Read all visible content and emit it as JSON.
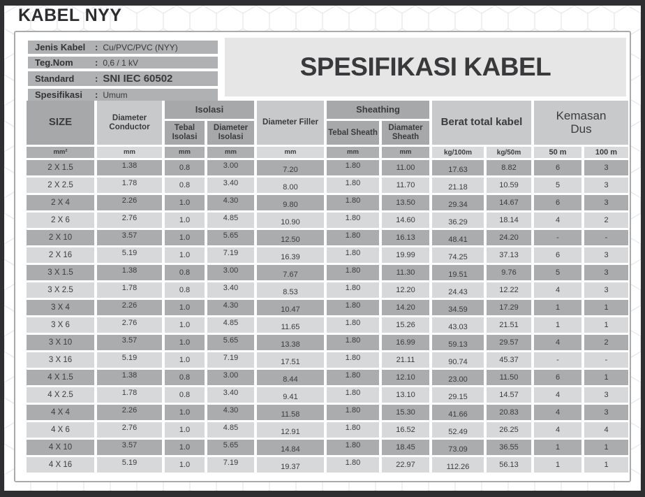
{
  "page": {
    "title": "KABEL NYY"
  },
  "spec_header": {
    "title": "SPESIFIKASI KABEL"
  },
  "info_box": {
    "rows": [
      {
        "label": "Jenis Kabel",
        "separator": ":",
        "value": "Cu/PVC/PVC (NYY)"
      },
      {
        "label": "Teg.Nom",
        "separator": ":",
        "value": "0,6 / 1 kV"
      },
      {
        "label": "Standard",
        "separator": ":",
        "value": "SNI IEC 60502"
      },
      {
        "label": "Spesifikasi",
        "separator": ":",
        "value": "Umum"
      }
    ]
  },
  "table": {
    "headers": {
      "size": "SIZE",
      "diameter_conductor": "Diameter Conductor",
      "isolasi_group": "Isolasi",
      "tebal_isolasi": "Tebal Isolasi",
      "diameter_isolasi": "Diameter Isolasi",
      "diameter_filler": "Diameter Filler",
      "sheathing_group": "Sheathing",
      "tebal_sheath": "Tebal Sheath",
      "diamater_sheath": "Diamater Sheath",
      "berat_total_kabel": "Berat total kabel",
      "kemasan_dus": "Kemasan Dus"
    },
    "units": [
      "mm²",
      "mm",
      "mm",
      "mm",
      "mm",
      "mm",
      "mm",
      "kg/100m",
      "kg/50m",
      "50 m",
      "100 m"
    ],
    "rows": [
      [
        "2 X 1.5",
        "1.38",
        "0.8",
        "3.00",
        "7.20",
        "1.80",
        "11.00",
        "17.63",
        "8.82",
        "6",
        "3"
      ],
      [
        "2 X 2.5",
        "1.78",
        "0.8",
        "3.40",
        "8.00",
        "1.80",
        "11.70",
        "21.18",
        "10.59",
        "5",
        "3"
      ],
      [
        "2 X 4",
        "2.26",
        "1.0",
        "4.30",
        "9.80",
        "1.80",
        "13.50",
        "29.34",
        "14.67",
        "6",
        "3"
      ],
      [
        "2 X 6",
        "2.76",
        "1.0",
        "4.85",
        "10.90",
        "1.80",
        "14.60",
        "36.29",
        "18.14",
        "4",
        "2"
      ],
      [
        "2 X 10",
        "3.57",
        "1.0",
        "5.65",
        "12.50",
        "1.80",
        "16.13",
        "48.41",
        "24.20",
        "-",
        "-"
      ],
      [
        "2 X 16",
        "5.19",
        "1.0",
        "7.19",
        "16.39",
        "1.80",
        "19.99",
        "74.25",
        "37.13",
        "6",
        "3"
      ],
      [
        "3 X 1.5",
        "1.38",
        "0.8",
        "3.00",
        "7.67",
        "1.80",
        "11.30",
        "19.51",
        "9.76",
        "5",
        "3"
      ],
      [
        "3 X 2.5",
        "1.78",
        "0.8",
        "3.40",
        "8.53",
        "1.80",
        "12.20",
        "24.43",
        "12.22",
        "4",
        "3"
      ],
      [
        "3 X 4",
        "2.26",
        "1.0",
        "4.30",
        "10.47",
        "1.80",
        "14.20",
        "34.59",
        "17.29",
        "1",
        "1"
      ],
      [
        "3 X 6",
        "2.76",
        "1.0",
        "4.85",
        "11.65",
        "1.80",
        "15.26",
        "43.03",
        "21.51",
        "1",
        "1"
      ],
      [
        "3 X 10",
        "3.57",
        "1.0",
        "5.65",
        "13.38",
        "1.80",
        "16.99",
        "59.13",
        "29.57",
        "4",
        "2"
      ],
      [
        "3 X 16",
        "5.19",
        "1.0",
        "7.19",
        "17.51",
        "1.80",
        "21.11",
        "90.74",
        "45.37",
        "-",
        "-"
      ],
      [
        "4 X 1.5",
        "1.38",
        "0.8",
        "3.00",
        "8.44",
        "1.80",
        "12.10",
        "23.00",
        "11.50",
        "6",
        "1"
      ],
      [
        "4 X 2.5",
        "1.78",
        "0.8",
        "3.40",
        "9.41",
        "1.80",
        "13.10",
        "29.15",
        "14.57",
        "4",
        "3"
      ],
      [
        "4 X 4",
        "2.26",
        "1.0",
        "4.30",
        "11.58",
        "1.80",
        "15.30",
        "41.66",
        "20.83",
        "4",
        "3"
      ],
      [
        "4 X 6",
        "2.76",
        "1.0",
        "4.85",
        "12.91",
        "1.80",
        "16.52",
        "52.49",
        "26.25",
        "4",
        "4"
      ],
      [
        "4 X 10",
        "3.57",
        "1.0",
        "5.65",
        "14.84",
        "1.80",
        "18.45",
        "73.09",
        "36.55",
        "1",
        "1"
      ],
      [
        "4 X 16",
        "5.19",
        "1.0",
        "7.19",
        "19.37",
        "1.80",
        "22.97",
        "112.26",
        "56.13",
        "1",
        "1"
      ]
    ]
  },
  "colors": {
    "frame": "#2f2f31",
    "row_dark": "#abacae",
    "row_light": "#d7d8da",
    "header_dark": "#a7a8aa",
    "header_light": "#c8c9cb",
    "info_bar": "#b0b1b3",
    "spec_panel_bg": "#e6e6e7",
    "text": "#3b3b3d",
    "hex_line": "#eaeaea"
  }
}
